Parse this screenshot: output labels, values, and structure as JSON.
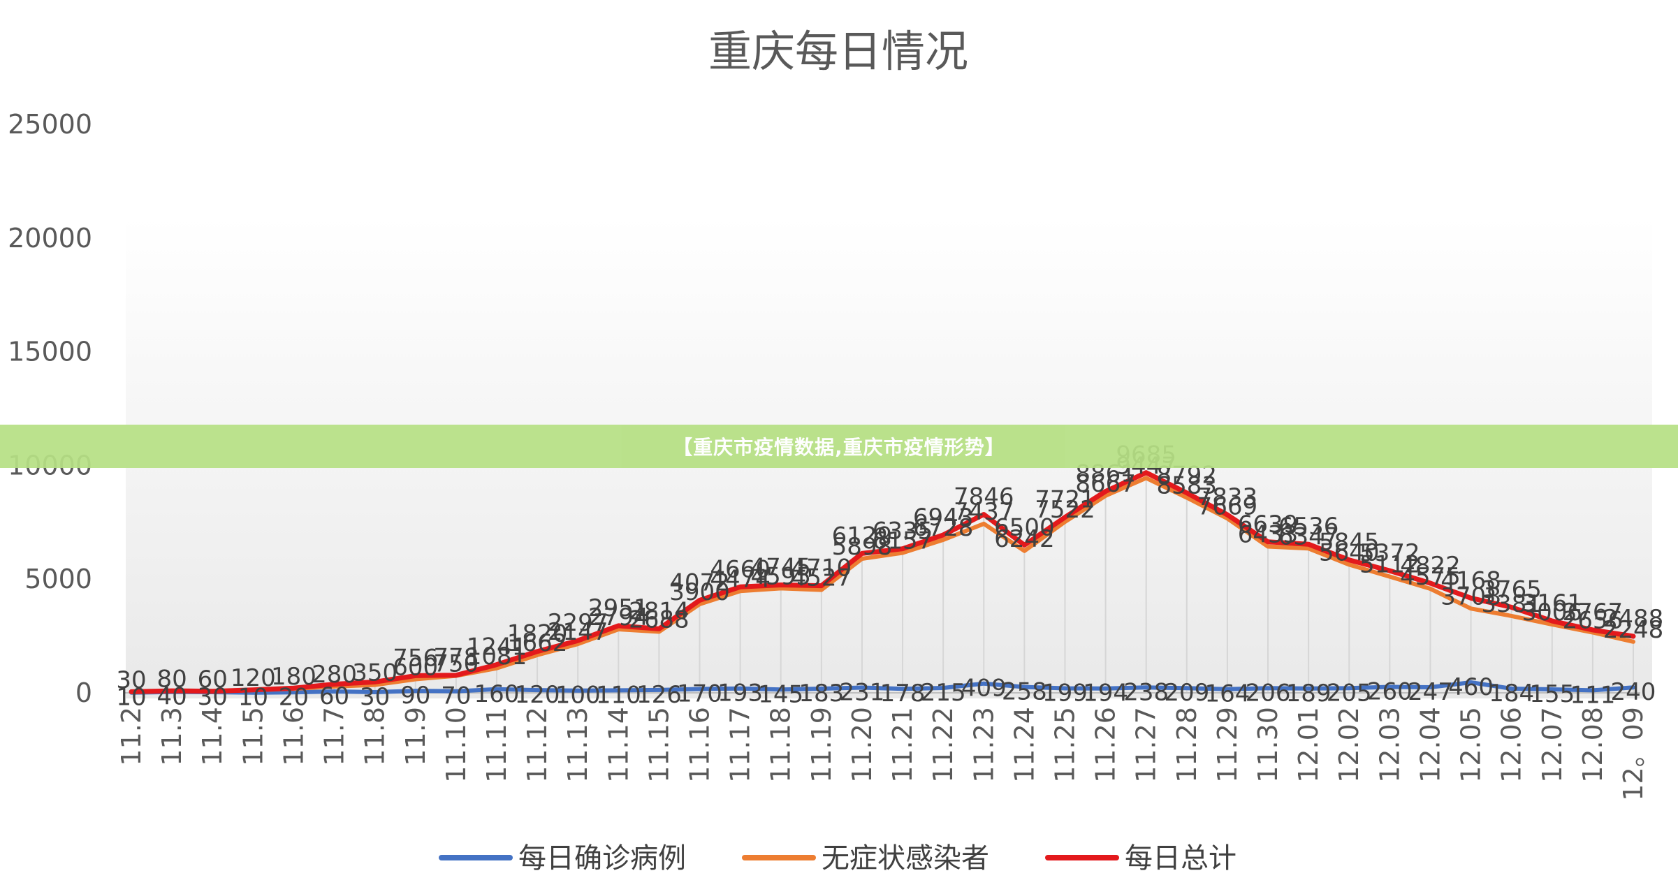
{
  "banner": {
    "text": "【重庆市疫情数据,重庆市疫情形势】"
  },
  "chart_data": {
    "type": "line",
    "title": "重庆每日情况",
    "ylim": [
      0,
      25000
    ],
    "yticks": [
      0,
      5000,
      10000,
      15000,
      20000,
      25000
    ],
    "grid": false,
    "legend_position": "bottom",
    "categories": [
      "11.2",
      "11.3",
      "11.4",
      "11.5",
      "11.6",
      "11.7",
      "11.8",
      "11.9",
      "11.10",
      "11.11",
      "11.12",
      "11.13",
      "11.14",
      "11.15",
      "11.16",
      "11.17",
      "11.18",
      "11.19",
      "11.20",
      "11.21",
      "11.22",
      "11.23",
      "11.24",
      "11.25",
      "11.26",
      "11.27",
      "11.28",
      "11.29",
      "11.30",
      "12.01",
      "12.02",
      "12.03",
      "12.04",
      "12.05",
      "12.06",
      "12.07",
      "12.08",
      "12。09"
    ],
    "series": [
      {
        "name": "每日确诊病例",
        "color": "#4472c4",
        "values": [
          10,
          40,
          30,
          10,
          20,
          60,
          30,
          90,
          70,
          160,
          120,
          100,
          110,
          126,
          170,
          193,
          145,
          183,
          231,
          178,
          215,
          409,
          258,
          199,
          194,
          238,
          209,
          164,
          206,
          189,
          205,
          260,
          247,
          460,
          184,
          155,
          111,
          240
        ],
        "labels": [
          "10",
          "40",
          "30",
          "10",
          "20",
          "60",
          "30",
          "90",
          "70",
          "160",
          "120",
          "100",
          "110",
          "126",
          "170",
          "193",
          "145",
          "183",
          "231",
          "178",
          "215",
          "409",
          "258",
          "199",
          "194",
          "238",
          "209",
          "164",
          "206",
          "189",
          "205",
          "260",
          "247",
          "460",
          "184",
          "155",
          "111",
          "240"
        ]
      },
      {
        "name": "无症状感染者",
        "color": "#ed7d31",
        "values": [
          30,
          80,
          60,
          120,
          180,
          280,
          350,
          600,
          750,
          1081,
          1662,
          2147,
          2794,
          2688,
          3900,
          4474,
          4595,
          4527,
          5898,
          6157,
          6728,
          7437,
          6242,
          7522,
          8667,
          9447,
          8583,
          7669,
          6433,
          6347,
          5640,
          5112,
          4575,
          3708,
          3381,
          3006,
          2656,
          2248
        ],
        "labels": [
          "30",
          "80",
          "60",
          "120",
          "180",
          "280",
          "350",
          "600",
          "750",
          "1081",
          "1662",
          "2147",
          "2794",
          "2688",
          "3900",
          "4474",
          "4595",
          "4527",
          "5898",
          "6157",
          "6728",
          "7437",
          "6242",
          "7522",
          "8667",
          "9447",
          "8583",
          "7669",
          "6433",
          "6347",
          "5640",
          "5112",
          "4575",
          "3708",
          "3381",
          "3006",
          "2656",
          "2248"
        ]
      },
      {
        "name": "每日总计",
        "color": "#e3191c",
        "values": [
          50,
          90,
          70,
          130,
          210,
          380,
          480,
          756,
          778,
          1241,
          1820,
          2297,
          2951,
          2814,
          4072,
          4660,
          4745,
          4710,
          6129,
          6335,
          6943,
          7846,
          6500,
          7721,
          8861,
          9685,
          8792,
          7833,
          6639,
          6536,
          5845,
          5372,
          4822,
          4168,
          3765,
          3161,
          2767,
          2488
        ],
        "labels": [
          "",
          "",
          "",
          "",
          "",
          "",
          "",
          "756",
          "778",
          "1241",
          "1820",
          "2297",
          "2951",
          "2814",
          "4072",
          "4660",
          "4745",
          "4710",
          "6129",
          "6335",
          "6943",
          "7846",
          "6500",
          "7721",
          "8861",
          "9685",
          "8792",
          "7833",
          "6639",
          "6536",
          "5845",
          "5372",
          "4822",
          "4168",
          "3765",
          "3161",
          "2767",
          "2488"
        ]
      }
    ]
  }
}
